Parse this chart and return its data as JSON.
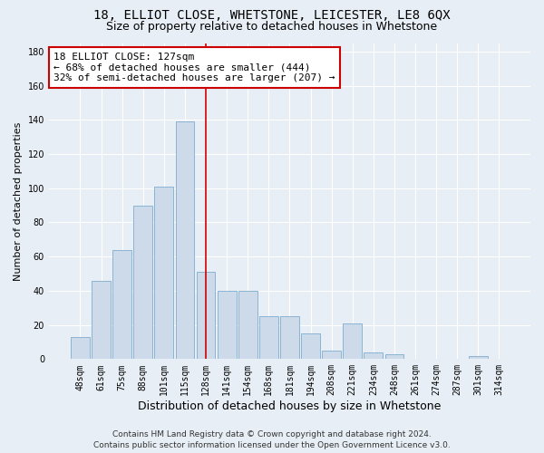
{
  "title_line1": "18, ELLIOT CLOSE, WHETSTONE, LEICESTER, LE8 6QX",
  "title_line2": "Size of property relative to detached houses in Whetstone",
  "xlabel": "Distribution of detached houses by size in Whetstone",
  "ylabel": "Number of detached properties",
  "categories": [
    "48sqm",
    "61sqm",
    "75sqm",
    "88sqm",
    "101sqm",
    "115sqm",
    "128sqm",
    "141sqm",
    "154sqm",
    "168sqm",
    "181sqm",
    "194sqm",
    "208sqm",
    "221sqm",
    "234sqm",
    "248sqm",
    "261sqm",
    "274sqm",
    "287sqm",
    "301sqm",
    "314sqm"
  ],
  "values": [
    13,
    46,
    64,
    90,
    101,
    139,
    51,
    40,
    40,
    25,
    25,
    15,
    5,
    21,
    4,
    3,
    0,
    0,
    0,
    2,
    0
  ],
  "bar_color": "#ccdaea",
  "bar_edgecolor": "#8ab4d4",
  "vline_color": "#cc0000",
  "ylim": [
    0,
    185
  ],
  "yticks": [
    0,
    20,
    40,
    60,
    80,
    100,
    120,
    140,
    160,
    180
  ],
  "annotation_text_line1": "18 ELLIOT CLOSE: 127sqm",
  "annotation_text_line2": "← 68% of detached houses are smaller (444)",
  "annotation_text_line3": "32% of semi-detached houses are larger (207) →",
  "annotation_box_color": "#cc0000",
  "annotation_box_facecolor": "#ffffff",
  "footer_line1": "Contains HM Land Registry data © Crown copyright and database right 2024.",
  "footer_line2": "Contains public sector information licensed under the Open Government Licence v3.0.",
  "background_color": "#e8eef5",
  "grid_color": "#ffffff",
  "title1_fontsize": 10,
  "title2_fontsize": 9,
  "xlabel_fontsize": 9,
  "ylabel_fontsize": 8,
  "tick_fontsize": 7,
  "annotation_fontsize": 8,
  "footer_fontsize": 6.5
}
